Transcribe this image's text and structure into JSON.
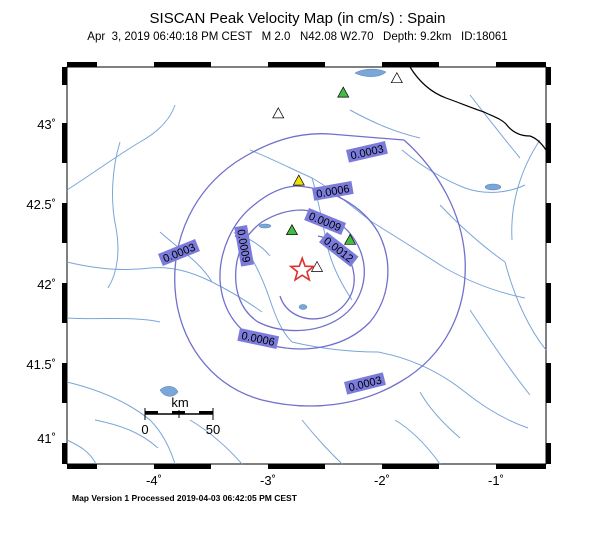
{
  "title": "SISCAN Peak Velocity Map (in cm/s) : Spain",
  "subtitle": "Apr  3, 2019 06:40:18 PM CEST   M 2.0   N42.08 W2.70   Depth: 9.2km   ID:18061",
  "footer": "Map Version 1 Processed 2019-04-03 06:42:05 PM CEST",
  "colors": {
    "contour": "#7070cc",
    "label_fill": "#7b7bdc",
    "rivers": "#7aa6d8",
    "lakes": "#7aa6d8",
    "border": "#000000",
    "epicenter": "#e03030",
    "station_green": "#44bb44",
    "station_yellow": "#f0e000",
    "station_white": "#ffffff"
  },
  "axes": {
    "lon_ticks": [
      {
        "value": -4,
        "label": "-4˚"
      },
      {
        "value": -3,
        "label": "-3˚"
      },
      {
        "value": -2,
        "label": "-2˚"
      },
      {
        "value": -1,
        "label": "-1˚"
      }
    ],
    "lat_ticks": [
      {
        "value": 43,
        "label": "43˚"
      },
      {
        "value": 42.5,
        "label": "42.5˚"
      },
      {
        "value": 42,
        "label": "42˚"
      },
      {
        "value": 41.5,
        "label": "41.5˚"
      },
      {
        "value": 41,
        "label": "41˚"
      }
    ]
  },
  "scale_bar": {
    "unit": "km",
    "start": "0",
    "end": "50"
  },
  "epicenter": {
    "lat": 42.08,
    "lon": -2.7,
    "icon": "star"
  },
  "contour_labels": [
    "0.0003",
    "0.0003",
    "0.0003",
    "0.0006",
    "0.0006",
    "0.0009",
    "0.0009",
    "0.0012"
  ],
  "stations": [
    {
      "color": "green",
      "lat": 43.19,
      "lon": -2.34
    },
    {
      "color": "green",
      "lat": 42.33,
      "lon": -2.79
    },
    {
      "color": "green",
      "lat": 42.27,
      "lon": -2.28
    },
    {
      "color": "yellow",
      "lat": 42.64,
      "lon": -2.73
    },
    {
      "color": "white",
      "lat": 43.06,
      "lon": -2.91
    },
    {
      "color": "white",
      "lat": 43.28,
      "lon": -1.87
    },
    {
      "color": "white",
      "lat": 42.1,
      "lon": -2.57
    }
  ]
}
